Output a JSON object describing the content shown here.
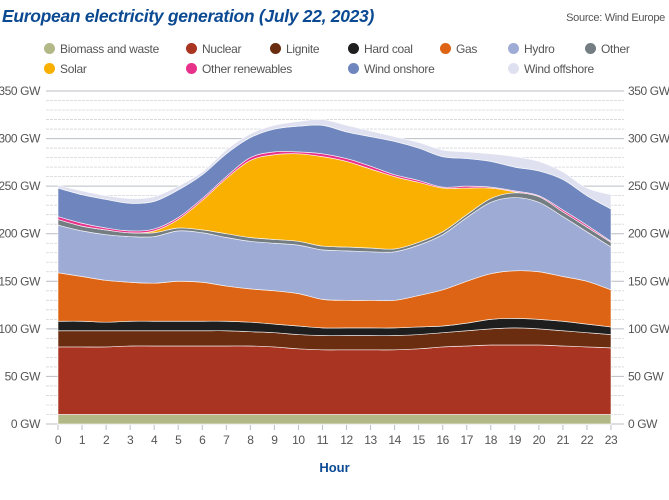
{
  "title": "European electricity generation (July 22, 2023)",
  "source": "Source: Wind Europe",
  "chart_data": {
    "type": "area",
    "stacked": true,
    "title": "European electricity generation (July 22, 2023)",
    "xlabel": "Hour",
    "ylabel": "",
    "x": [
      0,
      1,
      2,
      3,
      4,
      5,
      6,
      7,
      8,
      9,
      10,
      11,
      12,
      13,
      14,
      15,
      16,
      17,
      18,
      19,
      20,
      21,
      22,
      23
    ],
    "ylim": [
      0,
      350
    ],
    "yticks": [
      "0 GW",
      "50 GW",
      "100 GW",
      "150 GW",
      "200 GW",
      "250 GW",
      "300 GW",
      "350 GW"
    ],
    "ytick_values": [
      0,
      50,
      100,
      150,
      200,
      250,
      300,
      350
    ],
    "grid": true,
    "legend_position": "top",
    "series": [
      {
        "name": "Biomass and waste",
        "color": "#b3b887",
        "values": [
          10,
          10,
          10,
          10,
          10,
          10,
          10,
          10,
          10,
          10,
          10,
          10,
          10,
          10,
          10,
          10,
          10,
          10,
          10,
          10,
          10,
          10,
          10,
          10
        ]
      },
      {
        "name": "Nuclear",
        "color": "#a93422",
        "values": [
          71,
          71,
          71,
          72,
          72,
          72,
          72,
          72,
          72,
          71,
          69,
          68,
          68,
          68,
          68,
          69,
          71,
          72,
          73,
          73,
          73,
          72,
          71,
          70
        ]
      },
      {
        "name": "Lignite",
        "color": "#6b2d10",
        "values": [
          17,
          17,
          17,
          16,
          16,
          16,
          16,
          16,
          15,
          15,
          15,
          15,
          15,
          15,
          15,
          15,
          15,
          16,
          17,
          18,
          17,
          16,
          15,
          14
        ]
      },
      {
        "name": "Hard coal",
        "color": "#1e1e1e",
        "values": [
          10,
          10,
          9,
          10,
          10,
          10,
          10,
          10,
          10,
          9,
          9,
          8,
          8,
          8,
          8,
          8,
          7,
          8,
          10,
          10,
          10,
          10,
          9,
          8
        ]
      },
      {
        "name": "Gas",
        "color": "#dd6414",
        "values": [
          51,
          47,
          44,
          41,
          40,
          42,
          41,
          37,
          35,
          35,
          34,
          30,
          29,
          29,
          29,
          33,
          38,
          44,
          48,
          50,
          50,
          47,
          45,
          39
        ]
      },
      {
        "name": "Hydro",
        "color": "#9eabd5",
        "values": [
          50,
          48,
          48,
          48,
          49,
          53,
          52,
          51,
          50,
          50,
          51,
          52,
          52,
          51,
          51,
          53,
          58,
          67,
          75,
          77,
          73,
          63,
          52,
          45
        ]
      },
      {
        "name": "Other",
        "color": "#737d82",
        "values": [
          6,
          5,
          5,
          4,
          4,
          3,
          3,
          4,
          4,
          4,
          4,
          4,
          4,
          4,
          3,
          3,
          3,
          3,
          4,
          5,
          6,
          5,
          5,
          5
        ]
      },
      {
        "name": "Solar",
        "color": "#f9b000",
        "values": [
          0,
          0,
          0,
          0,
          2,
          9,
          31,
          58,
          81,
          89,
          92,
          94,
          90,
          83,
          76,
          63,
          46,
          28,
          11,
          1,
          0,
          0,
          0,
          0
        ]
      },
      {
        "name": "Other renewables",
        "color": "#e8318a",
        "values": [
          3,
          3,
          2,
          2,
          2,
          2,
          2,
          2,
          3,
          3,
          2,
          3,
          3,
          3,
          2,
          2,
          1,
          2,
          1,
          1,
          1,
          2,
          2,
          1
        ]
      },
      {
        "name": "Wind onshore",
        "color": "#6e86bd",
        "values": [
          30,
          30,
          30,
          29,
          29,
          29,
          25,
          24,
          21,
          24,
          27,
          30,
          28,
          31,
          35,
          34,
          32,
          29,
          27,
          25,
          26,
          32,
          31,
          34
        ]
      },
      {
        "name": "Wind offshore",
        "color": "#dfe1f0",
        "values": [
          3,
          4,
          4,
          5,
          5,
          4,
          3,
          4,
          4,
          4,
          5,
          6,
          7,
          6,
          5,
          6,
          7,
          7,
          8,
          11,
          10,
          8,
          8,
          15
        ]
      }
    ]
  }
}
